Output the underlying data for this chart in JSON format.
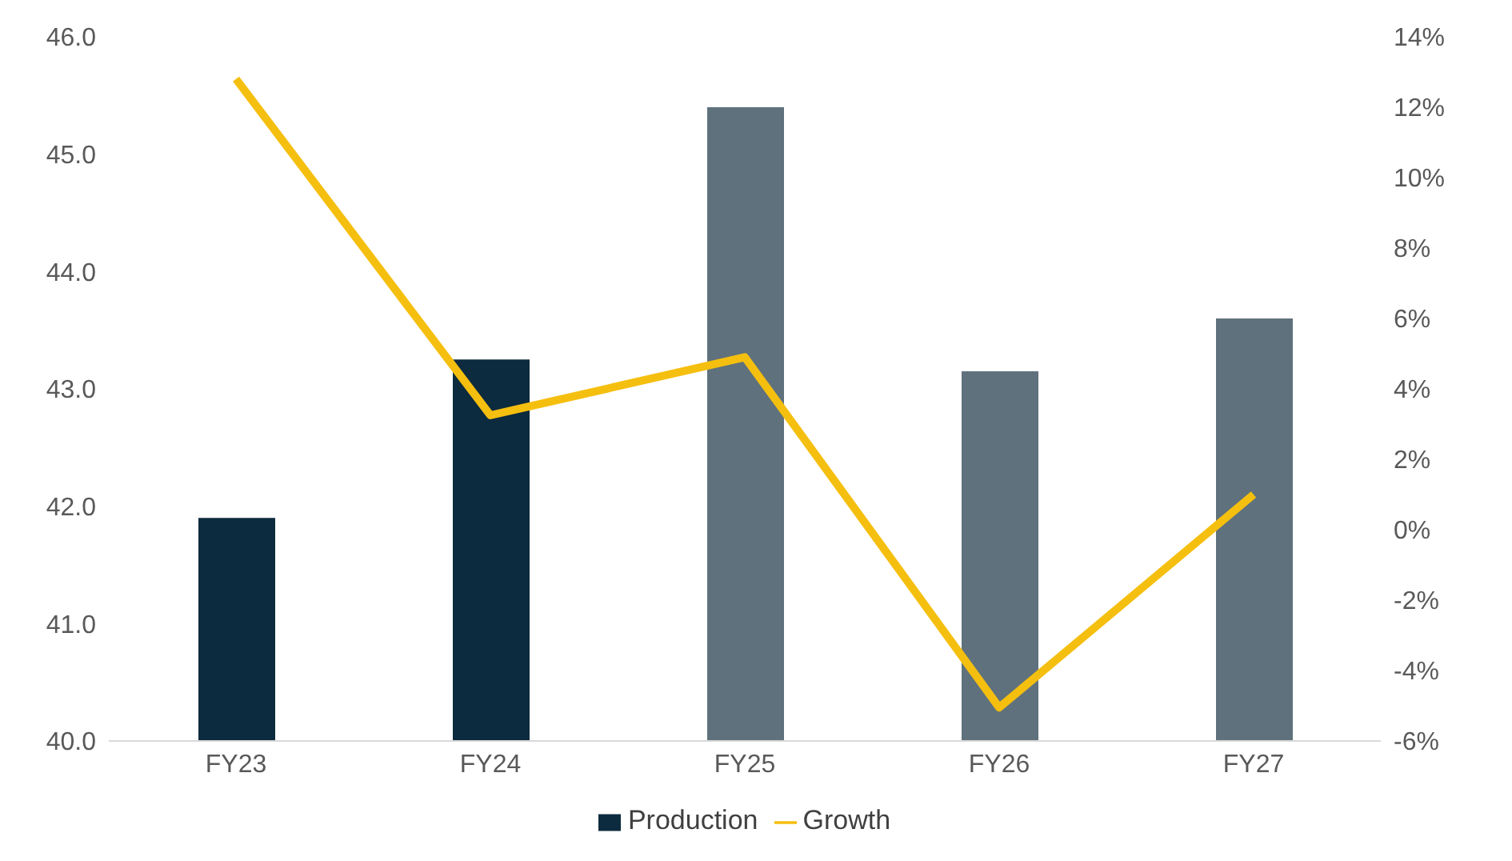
{
  "chart_data": {
    "type": "bar",
    "categories": [
      "FY23",
      "FY24",
      "FY25",
      "FY26",
      "FY27"
    ],
    "series": [
      {
        "name": "Production",
        "colors": [
          "#0d2b3e",
          "#0d2b3e",
          "#5f717c",
          "#5f717c",
          "#5f717c"
        ],
        "color": "#0d2b3e",
        "values": [
          41.9,
          43.25,
          45.4,
          43.15,
          43.6
        ]
      },
      {
        "name": "Growth",
        "type": "line",
        "axis": "y2",
        "color": "#f5bf0f",
        "values": [
          12.8,
          3.25,
          4.9,
          -5.05,
          1.0
        ]
      }
    ],
    "ylim": [
      40,
      46
    ],
    "yticks": [
      {
        "value": 40,
        "label": "40.0"
      },
      {
        "value": 41,
        "label": "41.0"
      },
      {
        "value": 42,
        "label": "42.0"
      },
      {
        "value": 43,
        "label": "43.0"
      },
      {
        "value": 44,
        "label": "44.0"
      },
      {
        "value": 45,
        "label": "45.0"
      },
      {
        "value": 46,
        "label": "46.0"
      }
    ],
    "y2lim": [
      -6,
      14
    ],
    "y2ticks": [
      {
        "value": -6,
        "label": "-6%"
      },
      {
        "value": -4,
        "label": "-4%"
      },
      {
        "value": -2,
        "label": "-2%"
      },
      {
        "value": 0,
        "label": "0%"
      },
      {
        "value": 2,
        "label": "2%"
      },
      {
        "value": 4,
        "label": "4%"
      },
      {
        "value": 6,
        "label": "6%"
      },
      {
        "value": 8,
        "label": "8%"
      },
      {
        "value": 10,
        "label": "10%"
      },
      {
        "value": 12,
        "label": "12%"
      },
      {
        "value": 14,
        "label": "14%"
      }
    ],
    "legend": "bottom",
    "marker": "none",
    "line_style": "solid"
  }
}
